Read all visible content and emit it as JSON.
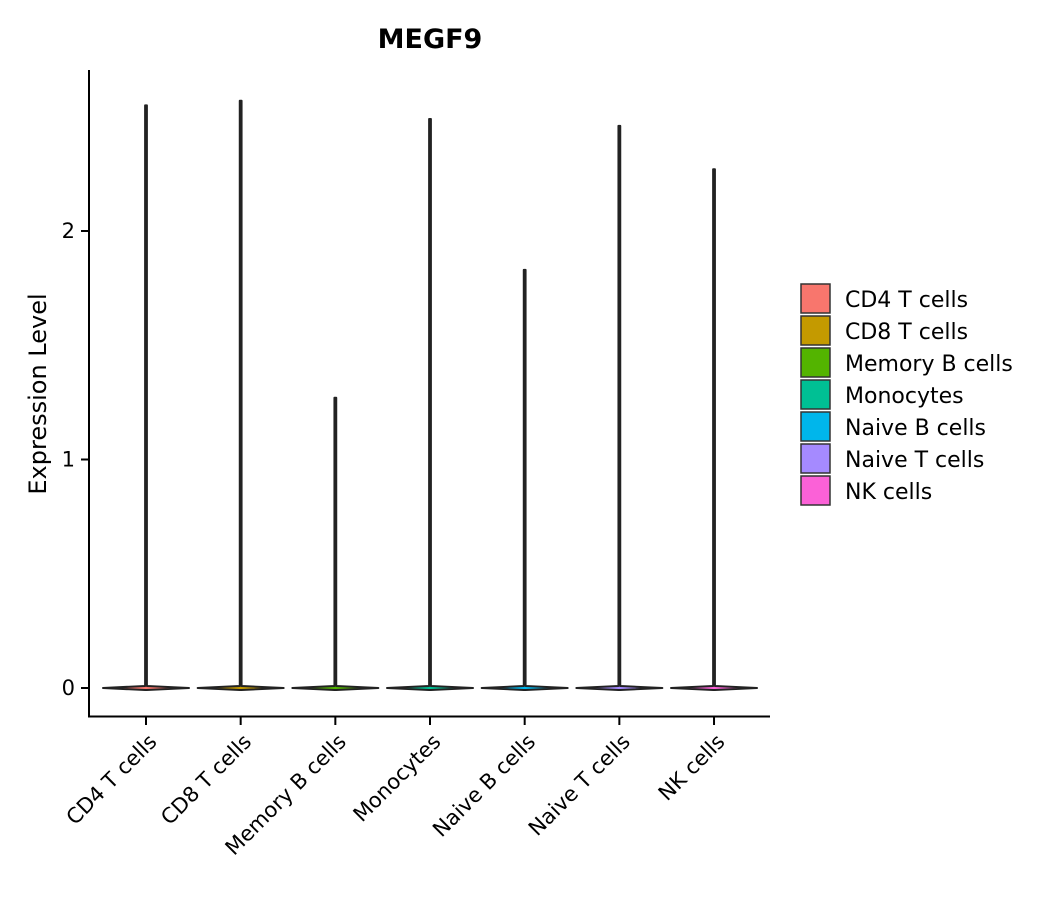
{
  "chart_data": {
    "type": "violin",
    "title": "MEGF9",
    "xlabel": "",
    "ylabel": "Expression Level",
    "ylim": [
      -0.13,
      2.7
    ],
    "yticks": [
      0,
      1,
      2
    ],
    "categories": [
      "CD4 T cells",
      "CD8 T cells",
      "Memory B cells",
      "Monocytes",
      "Naive B cells",
      "Naive T cells",
      "NK cells"
    ],
    "max_values": [
      2.55,
      2.57,
      1.27,
      2.49,
      1.83,
      2.46,
      2.27
    ],
    "min_values": [
      0,
      0,
      0,
      0,
      0,
      0,
      0
    ],
    "colors": [
      "#F8766D",
      "#C49A00",
      "#53B400",
      "#00C094",
      "#00B6EB",
      "#A58AFF",
      "#FB61D7"
    ],
    "legend": {
      "position": "right",
      "entries": [
        "CD4 T cells",
        "CD8 T cells",
        "Memory B cells",
        "Monocytes",
        "Naive B cells",
        "Naive T cells",
        "NK cells"
      ]
    },
    "grid": false
  }
}
